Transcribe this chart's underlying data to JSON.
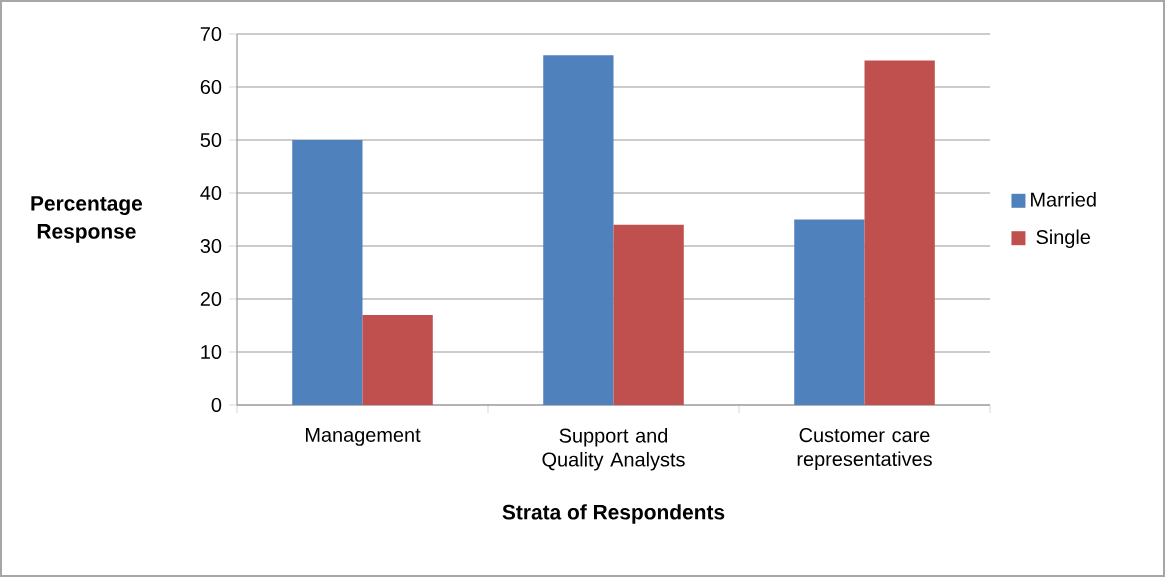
{
  "chart_data": {
    "type": "bar",
    "xlabel": "Strata of Respondents",
    "ylabel": "Percentage Response",
    "categories": [
      "Management",
      "Support and Quality Analysts",
      "Customer care representatives"
    ],
    "series": [
      {
        "name": "Married",
        "color": "#4f81bd",
        "values": [
          50,
          66,
          35
        ]
      },
      {
        "name": "Single",
        "color": "#c0504d",
        "values": [
          17,
          34,
          65
        ]
      }
    ],
    "ylim": [
      0,
      70
    ],
    "yticks": [
      0,
      10,
      20,
      30,
      40,
      50,
      60,
      70
    ],
    "grid": "y",
    "legend": "right"
  }
}
